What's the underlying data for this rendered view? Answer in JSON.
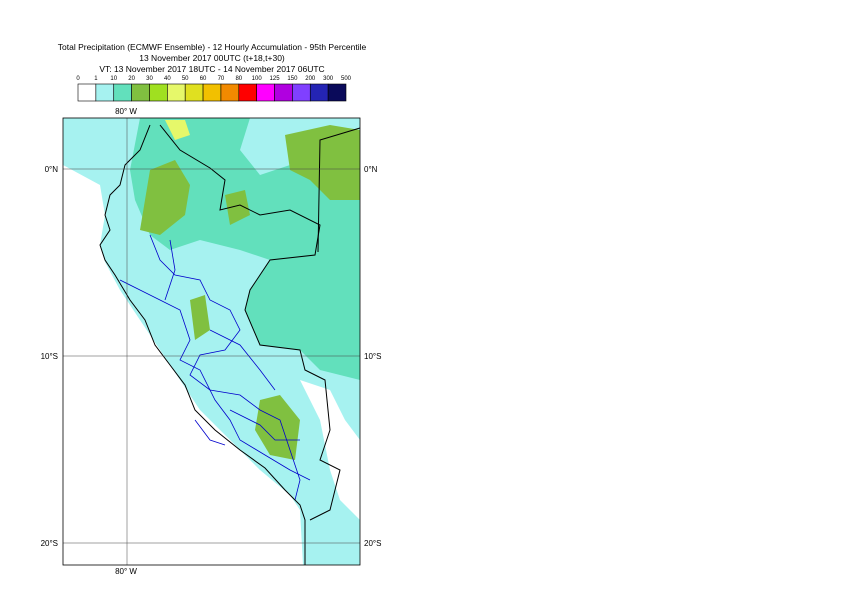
{
  "header": {
    "title": "Total Precipitation (ECMWF Ensemble) - 12 Hourly Accumulation - 95th Percentile",
    "base_time": "13 November 2017 00UTC (t+18,t+30)",
    "valid_time": "VT: 13 November 2017 18UTC - 14 November 2017 06UTC"
  },
  "colorbar": {
    "labels": [
      0,
      1,
      10,
      20,
      30,
      40,
      50,
      60,
      70,
      80,
      100,
      125,
      150,
      200,
      300,
      500
    ],
    "colors": [
      "#ffffff",
      "#a6f2f0",
      "#62e0bc",
      "#80c040",
      "#a0e020",
      "#e6f86a",
      "#e0e020",
      "#f2c000",
      "#f28a00",
      "#ff0000",
      "#ff00ff",
      "#b000e0",
      "#8040ff",
      "#2424b4",
      "#0a0a5a"
    ]
  },
  "map": {
    "lon_labels": [
      "80° W",
      "80° W"
    ],
    "lat_labels": [
      "0°N",
      "10°S",
      "20°S",
      "0°N",
      "10°S",
      "20°S"
    ]
  }
}
